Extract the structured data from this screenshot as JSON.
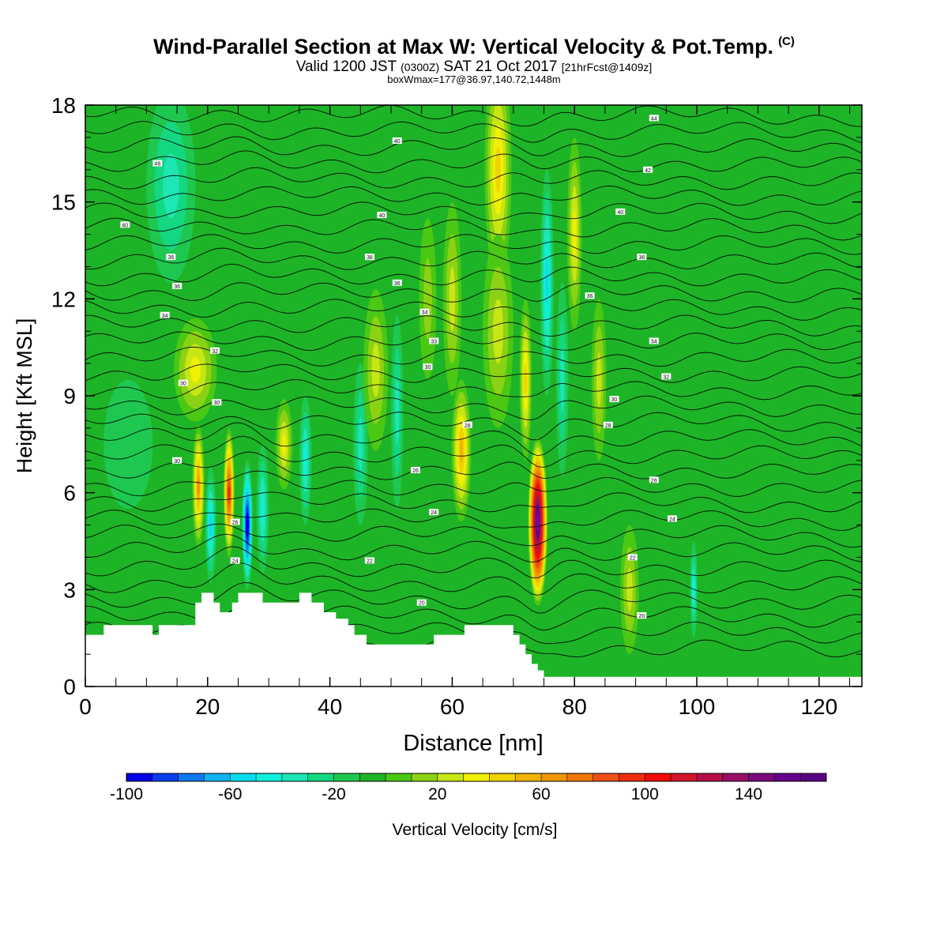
{
  "header": {
    "title": "Wind-Parallel Section at Max W: Vertical Velocity & Pot.Temp.",
    "copyright": "(C)",
    "valid_prefix": "Valid 1200 JST",
    "valid_utc": "(0300Z)",
    "valid_date": "SAT 21 Oct 2017",
    "forecast": "[21hrFcst@1409z]",
    "box_line": "boxWmax=177@36.97,140.72,1448m"
  },
  "chart_data": {
    "type": "heatmap",
    "xlabel": "Distance [nm]",
    "ylabel": "Height [Kft MSL]",
    "xlim": [
      0,
      127
    ],
    "ylim": [
      0,
      18
    ],
    "xticks": [
      "0",
      "20",
      "40",
      "60",
      "80",
      "100",
      "120"
    ],
    "yticks": [
      "0",
      "3",
      "6",
      "9",
      "12",
      "15",
      "18"
    ],
    "colorbar": {
      "label": "Vertical Velocity [cm/s]",
      "min": -100,
      "max": 170,
      "step": 10,
      "tick_labels": [
        "-100",
        "-60",
        "-20",
        "20",
        "60",
        "100",
        "140"
      ],
      "colors": [
        "#0000e6",
        "#0a3cf0",
        "#0f78f0",
        "#0fb4f0",
        "#0adcf0",
        "#0ff0dc",
        "#1ee6b4",
        "#14d782",
        "#1ec850",
        "#1eb428",
        "#4bc814",
        "#8cd214",
        "#c8e614",
        "#f0f000",
        "#f0d200",
        "#f0b400",
        "#f09600",
        "#f07800",
        "#f05014",
        "#f02d0a",
        "#f00a0a",
        "#d21428",
        "#b40f46",
        "#960f64",
        "#64008c",
        "#5a0082",
        "#780aa0"
      ],
      "colorbar_colors": [
        "#0000e6",
        "#0a3cf0",
        "#0f78f0",
        "#0fb4f0",
        "#0adcf0",
        "#0ff0dc",
        "#1ee6b4",
        "#14d782",
        "#1ec850",
        "#1eb428",
        "#4bc814",
        "#8cd214",
        "#c8e614",
        "#f0f000",
        "#f0d200",
        "#f0b400",
        "#f09600",
        "#f07800",
        "#f05014",
        "#f02d0a",
        "#f00a0a",
        "#d21428",
        "#b40f46",
        "#960f64",
        "#7a0a7a",
        "#64008c",
        "#5a0082"
      ]
    },
    "features": [
      {
        "x": 18.5,
        "z": 6.2,
        "w": 1.0,
        "h": 1.9,
        "v": 60
      },
      {
        "x": 20.5,
        "z": 5.0,
        "w": 0.9,
        "h": 1.8,
        "v": -55
      },
      {
        "x": 23.5,
        "z": 6.0,
        "w": 0.9,
        "h": 2.0,
        "v": 90
      },
      {
        "x": 26.5,
        "z": 5.0,
        "w": 0.9,
        "h": 2.0,
        "v": -100
      },
      {
        "x": 29.0,
        "z": 5.5,
        "w": 1.0,
        "h": 2.0,
        "v": -40
      },
      {
        "x": 32.5,
        "z": 7.5,
        "w": 1.4,
        "h": 1.4,
        "v": 30
      },
      {
        "x": 36.0,
        "z": 7.0,
        "w": 1.0,
        "h": 2.0,
        "v": -40
      },
      {
        "x": 18.0,
        "z": 9.8,
        "w": 3.5,
        "h": 1.6,
        "v": 30
      },
      {
        "x": 14.0,
        "z": 15.5,
        "w": 4.0,
        "h": 3.0,
        "v": -30
      },
      {
        "x": 45.0,
        "z": 7.5,
        "w": 1.2,
        "h": 2.5,
        "v": -35
      },
      {
        "x": 47.5,
        "z": 9.8,
        "w": 2.0,
        "h": 2.5,
        "v": 20
      },
      {
        "x": 51.0,
        "z": 8.5,
        "w": 1.0,
        "h": 3.0,
        "v": -30
      },
      {
        "x": 56.0,
        "z": 12.0,
        "w": 1.4,
        "h": 2.5,
        "v": 15
      },
      {
        "x": 61.5,
        "z": 7.3,
        "w": 1.6,
        "h": 2.2,
        "v": 55
      },
      {
        "x": 60.0,
        "z": 12.0,
        "w": 1.5,
        "h": 3.0,
        "v": 25
      },
      {
        "x": 67.5,
        "z": 16.0,
        "w": 2.2,
        "h": 3.5,
        "v": 45
      },
      {
        "x": 67.5,
        "z": 11.0,
        "w": 2.5,
        "h": 3.0,
        "v": 25
      },
      {
        "x": 74.0,
        "z": 5.1,
        "w": 1.6,
        "h": 2.6,
        "v": 177
      },
      {
        "x": 72.0,
        "z": 9.5,
        "w": 1.0,
        "h": 2.5,
        "v": 40
      },
      {
        "x": 75.5,
        "z": 12.5,
        "w": 1.1,
        "h": 3.5,
        "v": -55
      },
      {
        "x": 78.0,
        "z": 9.5,
        "w": 1.0,
        "h": 3.0,
        "v": -35
      },
      {
        "x": 80.0,
        "z": 14.0,
        "w": 1.2,
        "h": 3.0,
        "v": 30
      },
      {
        "x": 84.0,
        "z": 9.5,
        "w": 1.2,
        "h": 2.5,
        "v": 20
      },
      {
        "x": 89.0,
        "z": 3.0,
        "w": 1.5,
        "h": 2.0,
        "v": 25
      },
      {
        "x": 99.5,
        "z": 3.0,
        "w": 0.6,
        "h": 1.5,
        "v": -40
      },
      {
        "x": 7.0,
        "z": 7.5,
        "w": 4.0,
        "h": 2.0,
        "v": -10
      },
      {
        "x": 120.0,
        "z": 13.0,
        "w": 8.0,
        "h": 4.0,
        "v": -5
      }
    ],
    "terrain": [
      [
        0,
        1.6
      ],
      [
        3,
        1.6
      ],
      [
        3,
        1.9
      ],
      [
        11,
        1.9
      ],
      [
        11,
        1.6
      ],
      [
        12,
        1.6
      ],
      [
        12,
        1.9
      ],
      [
        18,
        1.9
      ],
      [
        18,
        2.6
      ],
      [
        19,
        2.6
      ],
      [
        19,
        2.9
      ],
      [
        21,
        2.9
      ],
      [
        21,
        2.6
      ],
      [
        22,
        2.6
      ],
      [
        22,
        2.3
      ],
      [
        24,
        2.3
      ],
      [
        24,
        2.6
      ],
      [
        25,
        2.6
      ],
      [
        25,
        2.9
      ],
      [
        29,
        2.9
      ],
      [
        29,
        2.6
      ],
      [
        35,
        2.6
      ],
      [
        35,
        2.9
      ],
      [
        37,
        2.9
      ],
      [
        37,
        2.6
      ],
      [
        39,
        2.6
      ],
      [
        39,
        2.3
      ],
      [
        41,
        2.3
      ],
      [
        41,
        2.1
      ],
      [
        43,
        2.1
      ],
      [
        43,
        1.9
      ],
      [
        44,
        1.9
      ],
      [
        44,
        1.6
      ],
      [
        46,
        1.6
      ],
      [
        46,
        1.3
      ],
      [
        57,
        1.3
      ],
      [
        57,
        1.6
      ],
      [
        62,
        1.6
      ],
      [
        62,
        1.9
      ],
      [
        70,
        1.9
      ],
      [
        70,
        1.6
      ],
      [
        71,
        1.6
      ],
      [
        71,
        1.3
      ],
      [
        72,
        1.3
      ],
      [
        72,
        1.0
      ],
      [
        73,
        1.0
      ],
      [
        73,
        0.7
      ],
      [
        74,
        0.7
      ],
      [
        74,
        0.5
      ],
      [
        75,
        0.5
      ],
      [
        75,
        0.3
      ],
      [
        127,
        0.3
      ]
    ],
    "contour_labels": [
      {
        "text": "40",
        "x": 6.5,
        "z": 14.3
      },
      {
        "text": "48",
        "x": 11.8,
        "z": 16.2
      },
      {
        "text": "36",
        "x": 14.0,
        "z": 13.3
      },
      {
        "text": "36",
        "x": 15.0,
        "z": 12.4
      },
      {
        "text": "34",
        "x": 13.0,
        "z": 11.5
      },
      {
        "text": "32",
        "x": 21.2,
        "z": 10.4
      },
      {
        "text": "30",
        "x": 16.0,
        "z": 9.4
      },
      {
        "text": "30",
        "x": 21.5,
        "z": 8.8
      },
      {
        "text": "30",
        "x": 15.0,
        "z": 7.0
      },
      {
        "text": "26",
        "x": 24.5,
        "z": 5.1
      },
      {
        "text": "24",
        "x": 24.5,
        "z": 3.9
      },
      {
        "text": "40",
        "x": 51.0,
        "z": 16.9
      },
      {
        "text": "40",
        "x": 48.5,
        "z": 14.6
      },
      {
        "text": "38",
        "x": 46.5,
        "z": 13.3
      },
      {
        "text": "36",
        "x": 51.0,
        "z": 12.5
      },
      {
        "text": "34",
        "x": 55.5,
        "z": 11.6
      },
      {
        "text": "33",
        "x": 57.0,
        "z": 10.7
      },
      {
        "text": "30",
        "x": 56.0,
        "z": 9.9
      },
      {
        "text": "28",
        "x": 62.5,
        "z": 8.1
      },
      {
        "text": "26",
        "x": 54.0,
        "z": 6.7
      },
      {
        "text": "24",
        "x": 57.0,
        "z": 5.4
      },
      {
        "text": "22",
        "x": 46.5,
        "z": 3.9
      },
      {
        "text": "20",
        "x": 55.0,
        "z": 2.6
      },
      {
        "text": "44",
        "x": 93.0,
        "z": 17.6
      },
      {
        "text": "42",
        "x": 92.0,
        "z": 16.0
      },
      {
        "text": "40",
        "x": 87.5,
        "z": 14.7
      },
      {
        "text": "36",
        "x": 91.0,
        "z": 13.3
      },
      {
        "text": "36",
        "x": 82.5,
        "z": 12.1
      },
      {
        "text": "34",
        "x": 93.0,
        "z": 10.7
      },
      {
        "text": "32",
        "x": 95.0,
        "z": 9.6
      },
      {
        "text": "30",
        "x": 86.5,
        "z": 8.9
      },
      {
        "text": "28",
        "x": 85.5,
        "z": 8.1
      },
      {
        "text": "26",
        "x": 93.0,
        "z": 6.4
      },
      {
        "text": "24",
        "x": 96.0,
        "z": 5.2
      },
      {
        "text": "22",
        "x": 89.5,
        "z": 4.0
      },
      {
        "text": "20",
        "x": 91.0,
        "z": 2.2
      }
    ]
  }
}
